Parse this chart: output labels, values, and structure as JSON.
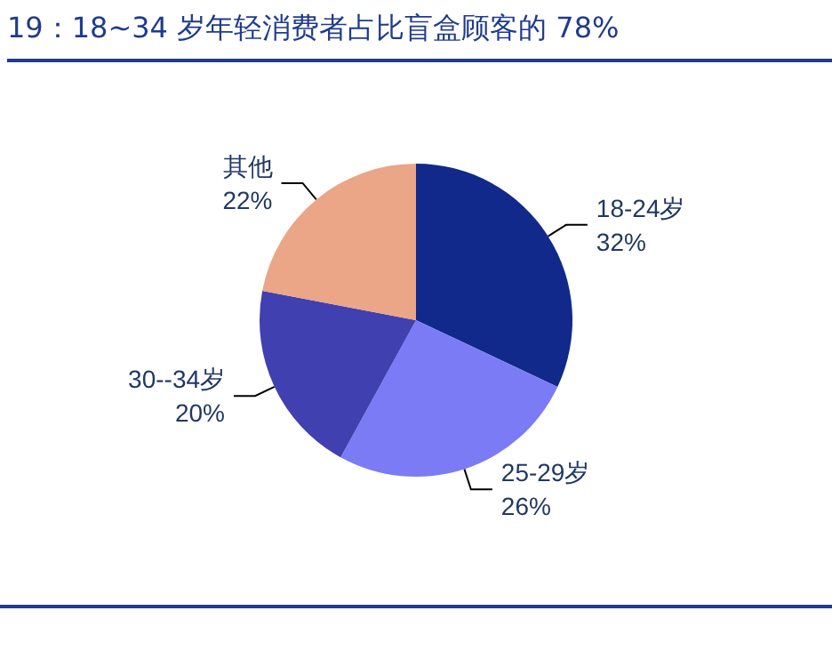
{
  "chart_data": {
    "type": "pie",
    "title": "19：18~34 岁年轻消费者占比盲盒顾客的 78%",
    "categories": [
      "18-24岁",
      "25-29岁",
      "30--34岁",
      "其他"
    ],
    "values": [
      32,
      26,
      20,
      22
    ],
    "value_labels": [
      "32%",
      "26%",
      "20%",
      "22%"
    ],
    "colors": [
      "#10298a",
      "#7b7bf5",
      "#4040b0",
      "#eba587"
    ],
    "legend": false
  }
}
